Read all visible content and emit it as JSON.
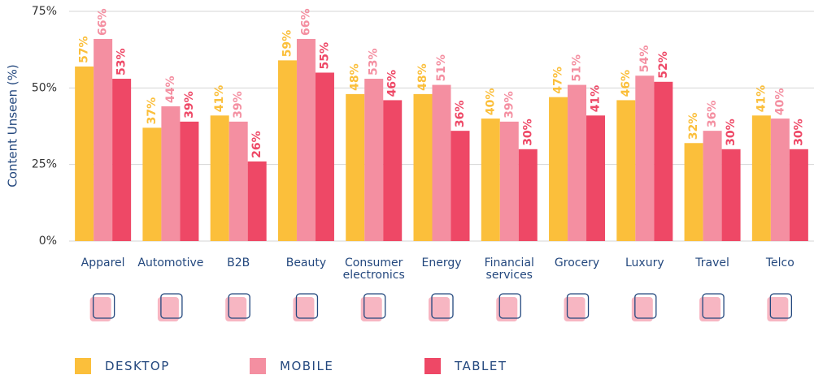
{
  "chart_data": {
    "type": "bar",
    "y_label": "Content Unseen (%)",
    "categories": [
      "Apparel",
      "Automotive",
      "B2B",
      "Beauty",
      "Consumer electronics",
      "Energy",
      "Financial services",
      "Grocery",
      "Luxury",
      "Travel",
      "Telco"
    ],
    "series": [
      {
        "name": "DESKTOP",
        "color": "#fbbf3b",
        "values": [
          57,
          37,
          41,
          59,
          48,
          48,
          40,
          47,
          46,
          32,
          41
        ],
        "value_labels": [
          "57%",
          "37%",
          "41%",
          "59%",
          "48%",
          "48%",
          "40%",
          "47%",
          "46%",
          "32%",
          "41%"
        ]
      },
      {
        "name": "MOBILE",
        "color": "#f48fa1",
        "values": [
          66,
          44,
          39,
          66,
          53,
          51,
          39,
          51,
          54,
          36,
          40
        ],
        "value_labels": [
          "66%",
          "44%",
          "39%",
          "66%",
          "53%",
          "51%",
          "39%",
          "51%",
          "54%",
          "36%",
          "40%"
        ]
      },
      {
        "name": "TABLET",
        "color": "#ee4866",
        "values": [
          53,
          39,
          26,
          55,
          46,
          36,
          30,
          41,
          52,
          30,
          30
        ],
        "value_labels": [
          "53%",
          "39%",
          "26%",
          "55%",
          "46%",
          "36%",
          "30%",
          "41%",
          "52%",
          "30%",
          "30%"
        ]
      }
    ],
    "ylim": [
      0,
      75
    ],
    "yticks": [
      {
        "value": 0,
        "label": "0%"
      },
      {
        "value": 25,
        "label": "25%"
      },
      {
        "value": 50,
        "label": "50%"
      },
      {
        "value": 75,
        "label": "75%"
      }
    ],
    "grid": true
  }
}
